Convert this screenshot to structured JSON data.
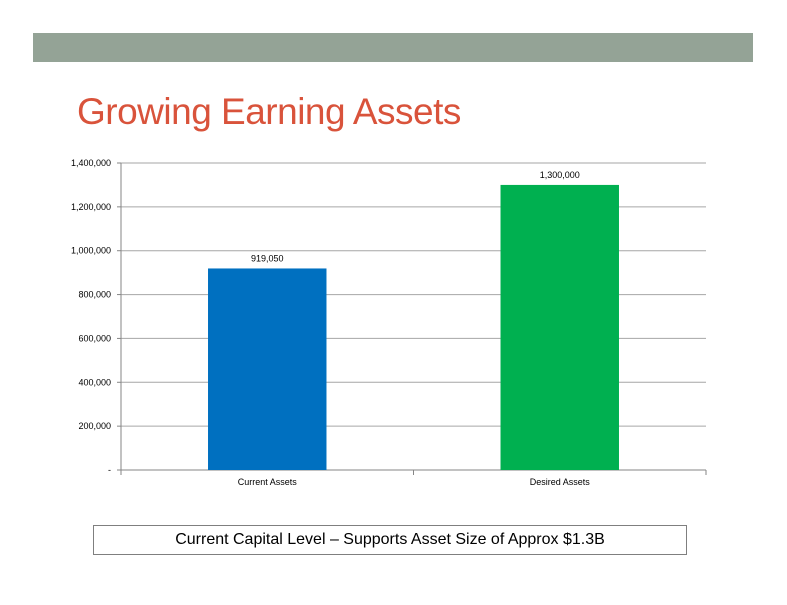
{
  "slide": {
    "title": "Growing Earning Assets",
    "caption": "Current Capital Level – Supports Asset Size of Approx $1.3B",
    "header_bar_color": "#94a396",
    "title_color": "#d9533b"
  },
  "chart_data": {
    "type": "bar",
    "categories": [
      "Current Assets",
      "Desired Assets"
    ],
    "values": [
      919050,
      1300000
    ],
    "data_labels": [
      "919,050",
      "1,300,000"
    ],
    "bar_colors": [
      "#0070c0",
      "#00b050"
    ],
    "ylim": [
      0,
      1400000
    ],
    "yticks": [
      0,
      200000,
      400000,
      600000,
      800000,
      1000000,
      1200000,
      1400000
    ],
    "ytick_labels": [
      "-",
      "200,000",
      "400,000",
      "600,000",
      "800,000",
      "1,000,000",
      "1,200,000",
      "1,400,000"
    ],
    "grid": true,
    "legend": "none"
  }
}
